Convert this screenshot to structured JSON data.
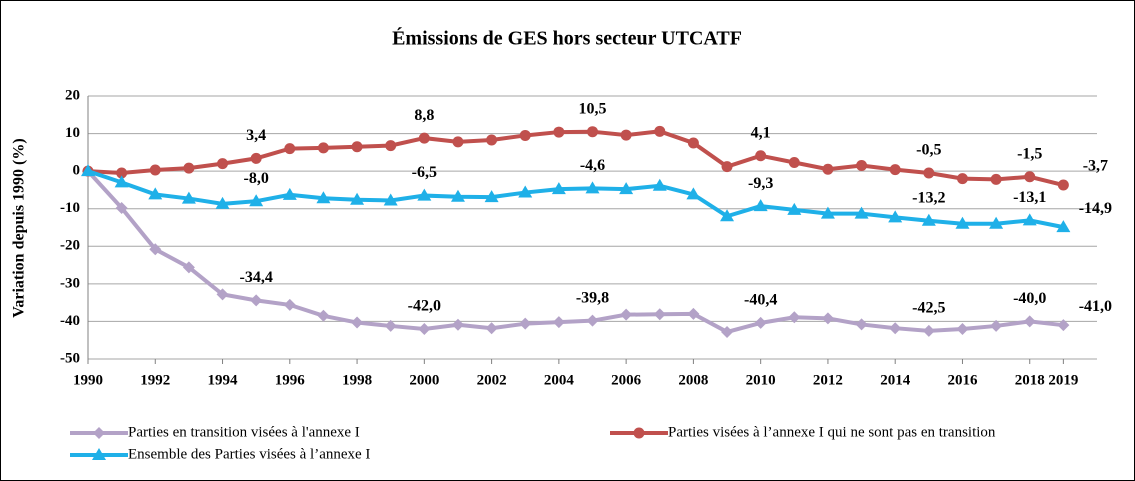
{
  "chart_data": {
    "type": "line",
    "title": "Émissions de GES hors secteur UTCATF",
    "y_label": "Variation depuis 1990 (%)",
    "x": [
      1990,
      1991,
      1992,
      1993,
      1994,
      1995,
      1996,
      1997,
      1998,
      1999,
      2000,
      2001,
      2002,
      2003,
      2004,
      2005,
      2006,
      2007,
      2008,
      2009,
      2010,
      2011,
      2012,
      2013,
      2014,
      2015,
      2016,
      2017,
      2018,
      2019
    ],
    "xlim": [
      1990,
      2020
    ],
    "xticks": [
      1990,
      1992,
      1994,
      1996,
      1998,
      2000,
      2002,
      2004,
      2006,
      2008,
      2010,
      2012,
      2014,
      2016,
      2018,
      2019
    ],
    "ylim": [
      -50,
      20
    ],
    "yticks": [
      -50,
      -40,
      -30,
      -20,
      -10,
      0,
      10,
      20
    ],
    "grid": true,
    "legend": "bottom",
    "series": [
      {
        "name": "Parties en transition visées à l'annexe I",
        "color": "#b3a2c7",
        "marker": "diamond",
        "values": [
          0,
          -9.8,
          -20.8,
          -25.6,
          -32.8,
          -34.4,
          -35.6,
          -38.5,
          -40.3,
          -41.2,
          -42.0,
          -40.9,
          -41.8,
          -40.6,
          -40.2,
          -39.8,
          -38.2,
          -38.1,
          -38.0,
          -42.8,
          -40.4,
          -38.9,
          -39.2,
          -40.8,
          -41.8,
          -42.5,
          -42.0,
          -41.2,
          -40.0,
          -41.0
        ],
        "value_labels": [
          null,
          null,
          null,
          null,
          null,
          "-34,4",
          null,
          null,
          null,
          null,
          "-42,0",
          null,
          null,
          null,
          null,
          "-39,8",
          null,
          null,
          null,
          null,
          "-40,4",
          null,
          null,
          null,
          null,
          "-42,5",
          null,
          null,
          "-40,0",
          "-41,0"
        ]
      },
      {
        "name": "Parties visées à l’annexe I qui ne sont pas en transition",
        "color": "#c0504d",
        "marker": "circle",
        "values": [
          0,
          -0.5,
          0.3,
          0.8,
          2.0,
          3.4,
          6.0,
          6.2,
          6.5,
          6.8,
          8.8,
          7.8,
          8.3,
          9.5,
          10.4,
          10.5,
          9.6,
          10.6,
          7.5,
          1.2,
          4.1,
          2.3,
          0.5,
          1.5,
          0.4,
          -0.5,
          -2.0,
          -2.2,
          -1.5,
          -3.7
        ],
        "value_labels": [
          null,
          null,
          null,
          null,
          null,
          "3,4",
          null,
          null,
          null,
          null,
          "8,8",
          null,
          null,
          null,
          null,
          "10,5",
          null,
          null,
          null,
          null,
          "4,1",
          null,
          null,
          null,
          null,
          "-0,5",
          null,
          null,
          "-1,5",
          "-3,7"
        ]
      },
      {
        "name": "Ensemble des Parties visées à l’annexe I",
        "color": "#1fb0e8",
        "marker": "triangle",
        "values": [
          0,
          -3.0,
          -6.2,
          -7.3,
          -8.7,
          -8.0,
          -6.3,
          -7.2,
          -7.6,
          -7.8,
          -6.5,
          -6.8,
          -6.9,
          -5.7,
          -4.8,
          -4.6,
          -4.8,
          -3.9,
          -6.2,
          -12.0,
          -9.3,
          -10.3,
          -11.3,
          -11.3,
          -12.3,
          -13.2,
          -14.0,
          -14.0,
          -13.1,
          -14.9
        ],
        "value_labels": [
          null,
          null,
          null,
          null,
          null,
          "-8,0",
          null,
          null,
          null,
          null,
          "-6,5",
          null,
          null,
          null,
          null,
          "-4,6",
          null,
          null,
          null,
          null,
          "-9,3",
          null,
          null,
          null,
          null,
          "-13,2",
          null,
          null,
          "-13,1",
          "-14,9"
        ]
      }
    ]
  }
}
